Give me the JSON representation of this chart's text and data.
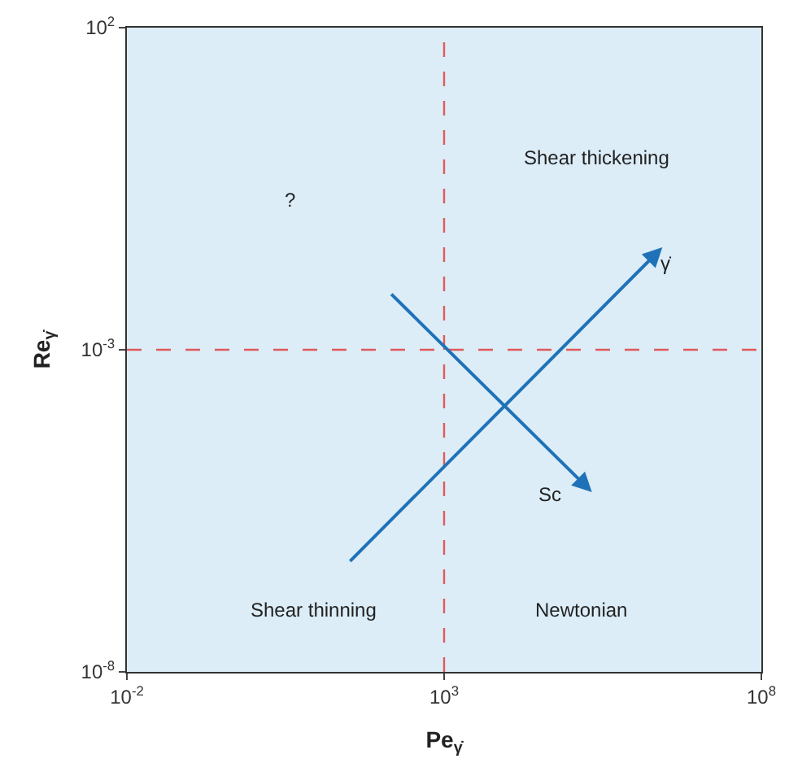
{
  "chart_data": {
    "type": "line",
    "xlabel": "Pe$_{γ̇}$",
    "ylabel": "Re$_{γ̇}$",
    "log": "xy",
    "xlim": [
      0.01,
      100000000
    ],
    "ylim": [
      1e-08,
      100
    ],
    "xticks": [
      {
        "value": 0.01,
        "label": "10$^{-2}$"
      },
      {
        "value": 1000,
        "label": "10$^{3}$"
      },
      {
        "value": 100000000,
        "label": "10$^{8}$"
      }
    ],
    "yticks": [
      {
        "value": 1e-08,
        "label": "10$^{-8}$"
      },
      {
        "value": 0.001,
        "label": "10$^{-3}$"
      },
      {
        "value": 100,
        "label": "10$^{2}$"
      }
    ],
    "grid": false,
    "ref_lines": [
      {
        "axis": "x",
        "value": 1000,
        "color": "#e05a5a",
        "line_style": "dashed"
      },
      {
        "axis": "y",
        "value": 0.001,
        "color": "#e05a5a",
        "line_style": "dashed"
      }
    ],
    "annotations": [
      "Shear thickening",
      "?",
      "Shear thinning",
      "Newtonian",
      "γ̇",
      "Sc"
    ]
  }
}
